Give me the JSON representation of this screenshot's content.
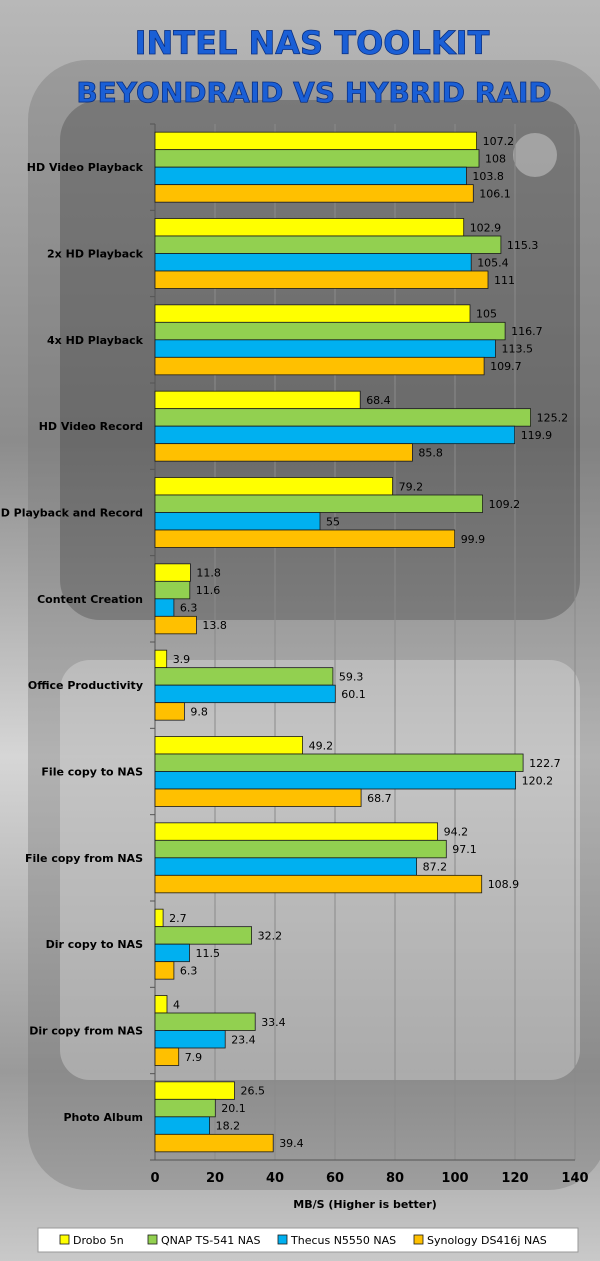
{
  "chart_data": {
    "type": "bar",
    "orientation": "horizontal",
    "title": "INTEL NAS TOOLKIT",
    "subtitle": "BEYONDRAID VS HYBRID RAID",
    "xlabel": "MB/S (Higher is better)",
    "ylabel": "",
    "xlim": [
      0,
      140
    ],
    "xticks": [
      0,
      20,
      40,
      60,
      80,
      100,
      120,
      140
    ],
    "grid": true,
    "legend_position": "bottom",
    "categories": [
      "HD Video Playback",
      "2x HD Playback",
      "4x HD Playback",
      "HD Video Record",
      "HD Playback and Record",
      "Content Creation",
      "Office Productivity",
      "File copy to NAS",
      "File copy from NAS",
      "Dir copy to NAS",
      "Dir copy from NAS",
      "Photo Album"
    ],
    "series": [
      {
        "name": "Drobo 5n",
        "color": "#ffff00",
        "values": [
          107.2,
          102.9,
          105,
          68.4,
          79.2,
          11.8,
          3.9,
          49.2,
          94.2,
          2.7,
          4,
          26.5
        ]
      },
      {
        "name": "QNAP TS-541 NAS",
        "color": "#92d050",
        "values": [
          108,
          115.3,
          116.7,
          125.2,
          109.2,
          11.6,
          59.3,
          122.7,
          97.1,
          32.2,
          33.4,
          20.1
        ]
      },
      {
        "name": "Thecus N5550 NAS",
        "color": "#00b0f0",
        "values": [
          103.8,
          105.4,
          113.5,
          119.9,
          55,
          6.3,
          60.1,
          120.2,
          87.2,
          11.5,
          23.4,
          18.2
        ]
      },
      {
        "name": "Synology DS416j NAS",
        "color": "#ffc000",
        "values": [
          106.1,
          111,
          109.7,
          85.8,
          99.9,
          13.8,
          9.8,
          68.7,
          108.9,
          6.3,
          7.9,
          39.4
        ]
      }
    ]
  }
}
